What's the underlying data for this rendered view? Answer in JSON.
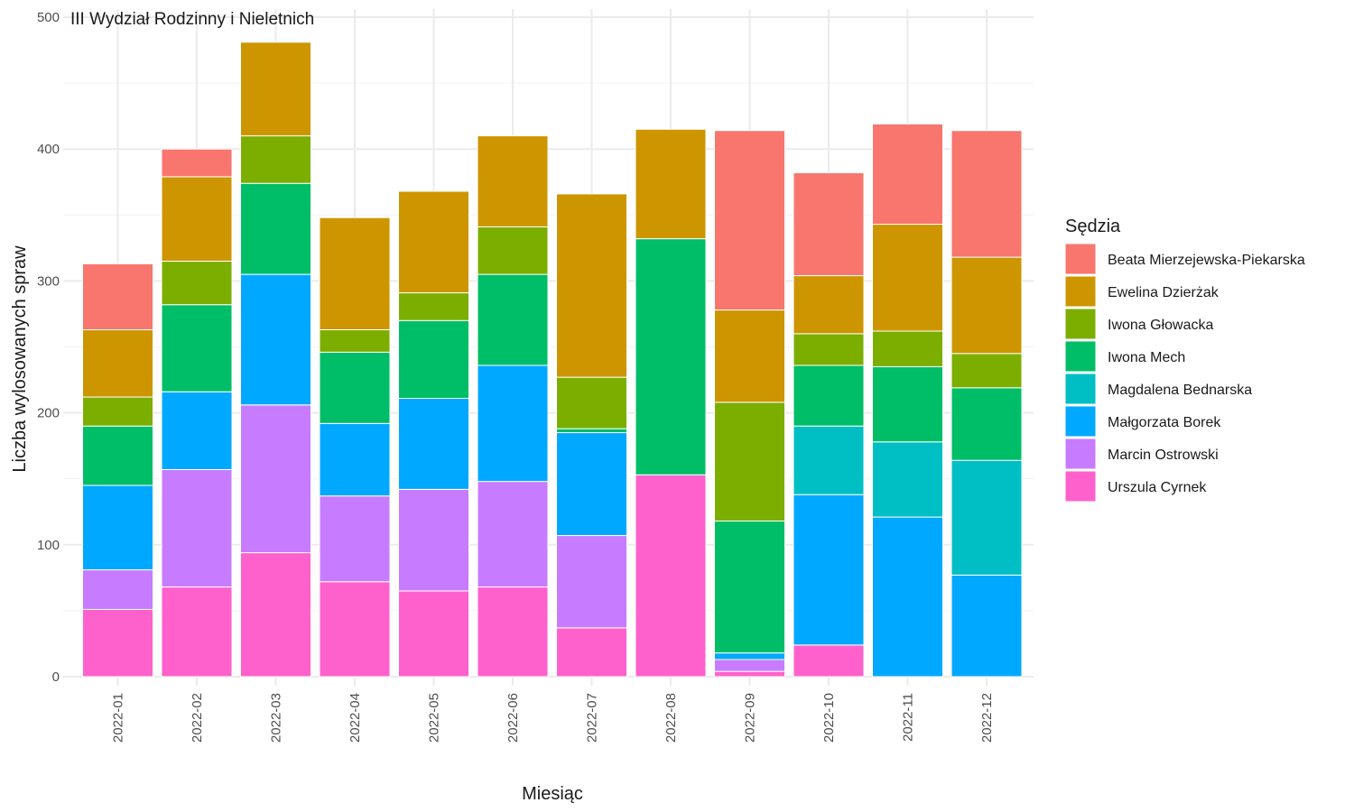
{
  "chart_data": {
    "type": "bar",
    "stacked": true,
    "title": "III Wydział Rodzinny i Nieletnich",
    "xlabel": "Miesiąc",
    "ylabel": "Liczba wylosowanych spraw",
    "ylim": [
      0,
      500
    ],
    "yticks": [
      0,
      100,
      200,
      300,
      400,
      500
    ],
    "grid": true,
    "legend_title": "Sędzia",
    "legend_position": "right",
    "categories": [
      "2022-01",
      "2022-02",
      "2022-03",
      "2022-04",
      "2022-05",
      "2022-06",
      "2022-07",
      "2022-08",
      "2022-09",
      "2022-10",
      "2022-11",
      "2022-12"
    ],
    "series": [
      {
        "name": "Beata Mierzejewska-Piekarska",
        "color": "#F8766D",
        "values": [
          50,
          21,
          0,
          0,
          0,
          0,
          0,
          0,
          136,
          78,
          76,
          96
        ]
      },
      {
        "name": "Ewelina Dzierżak",
        "color": "#CD9600",
        "values": [
          51,
          64,
          71,
          85,
          77,
          69,
          139,
          83,
          70,
          44,
          81,
          73
        ]
      },
      {
        "name": "Iwona Głowacka",
        "color": "#7CAE00",
        "values": [
          22,
          33,
          36,
          17,
          21,
          36,
          39,
          0,
          90,
          24,
          27,
          26
        ]
      },
      {
        "name": "Iwona Mech",
        "color": "#00BE67",
        "values": [
          45,
          66,
          69,
          54,
          59,
          69,
          3,
          179,
          100,
          46,
          57,
          55
        ]
      },
      {
        "name": "Magdalena Bednarska",
        "color": "#00BFC4",
        "values": [
          0,
          0,
          0,
          0,
          0,
          0,
          0,
          0,
          0,
          52,
          57,
          87
        ]
      },
      {
        "name": "Małgorzata Borek",
        "color": "#00A9FF",
        "values": [
          64,
          59,
          99,
          55,
          69,
          88,
          78,
          0,
          5,
          114,
          121,
          77
        ]
      },
      {
        "name": "Marcin Ostrowski",
        "color": "#C77CFF",
        "values": [
          30,
          89,
          112,
          65,
          77,
          80,
          70,
          0,
          9,
          0,
          0,
          0
        ]
      },
      {
        "name": "Urszula Cyrnek",
        "color": "#FF61CC",
        "values": [
          51,
          68,
          94,
          72,
          65,
          68,
          37,
          153,
          4,
          24,
          0,
          0
        ]
      }
    ]
  }
}
